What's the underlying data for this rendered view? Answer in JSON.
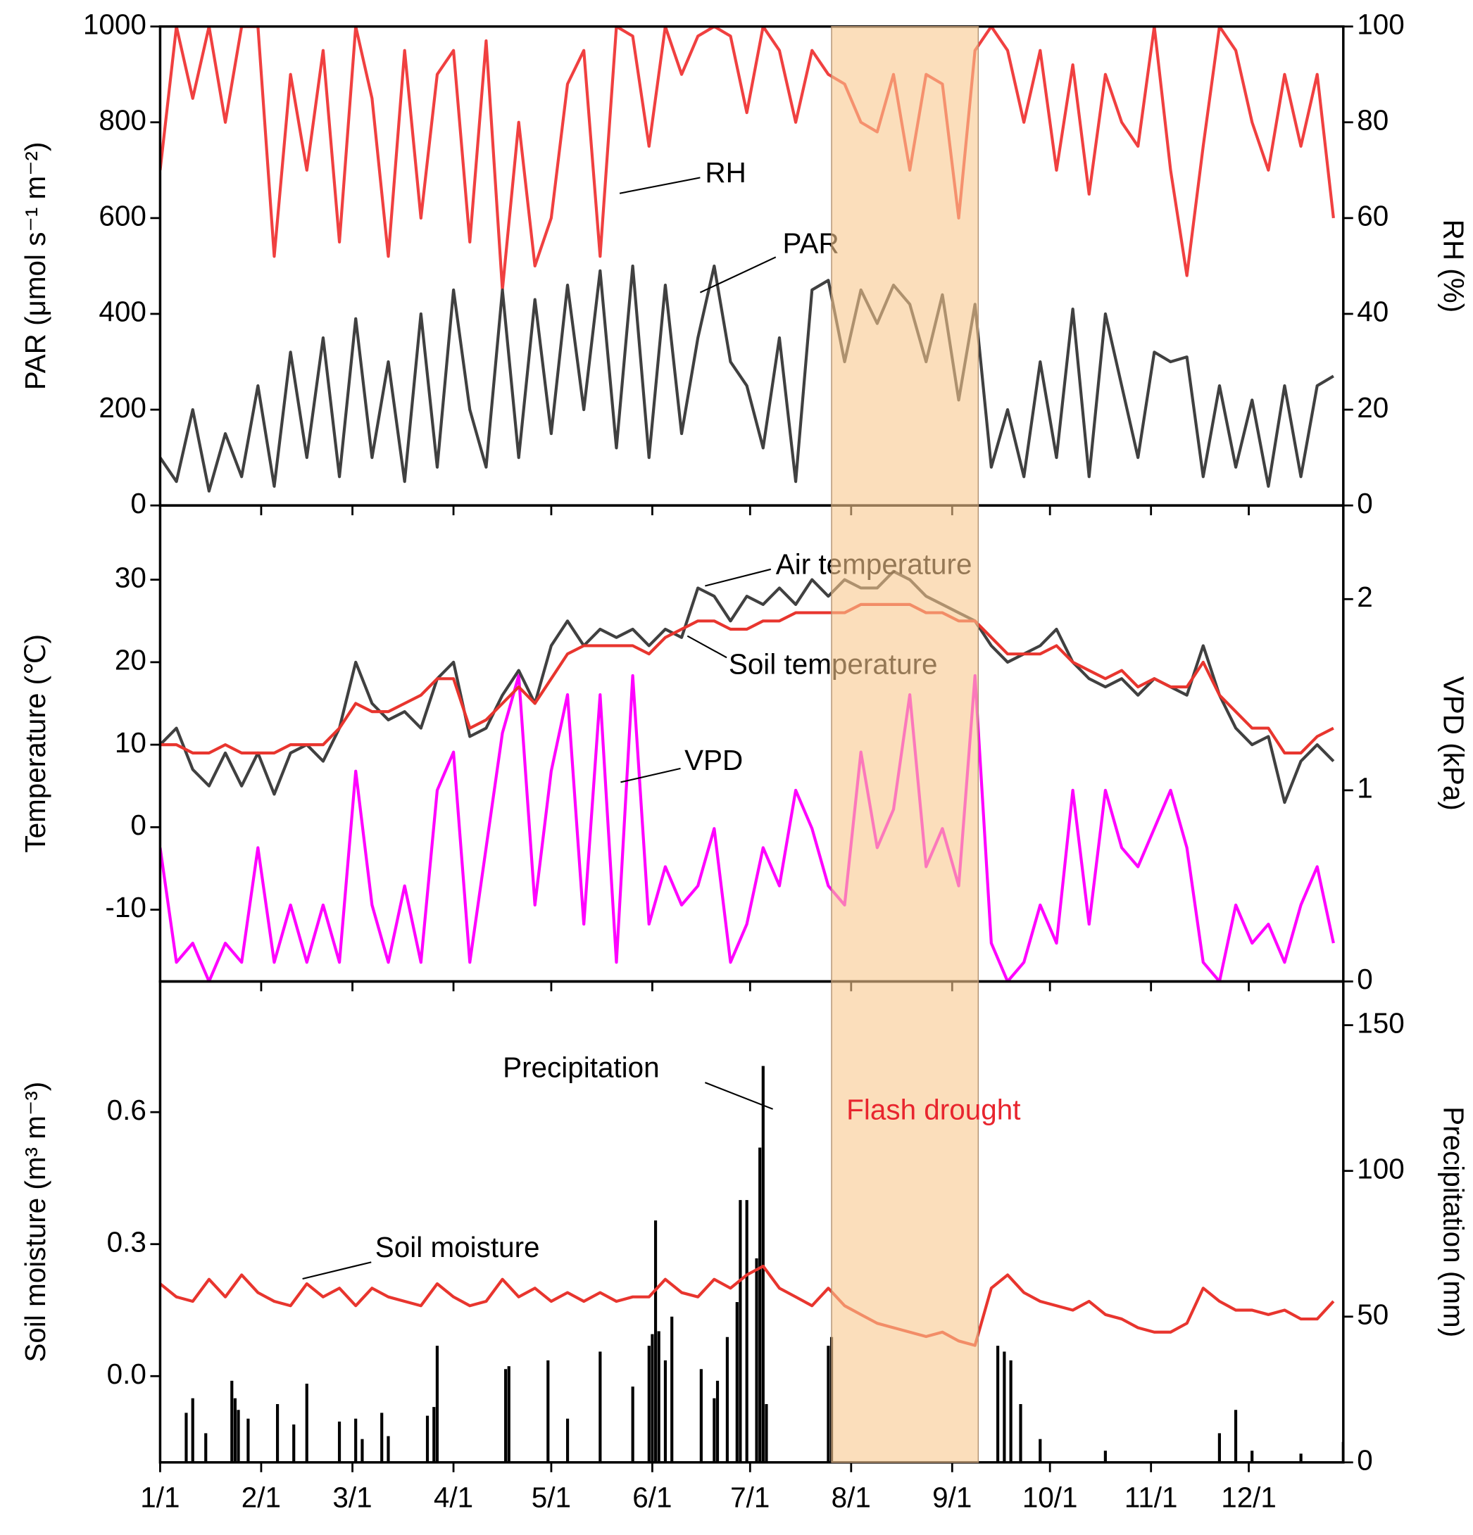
{
  "chart_data": [
    {
      "type": "line",
      "ylabel": "PAR (μmol s⁻¹ m⁻²)",
      "y2label": "RH (%)",
      "ylim": [
        0,
        1000
      ],
      "yticks": [
        0,
        200,
        400,
        600,
        800,
        1000
      ],
      "y2lim": [
        0,
        100
      ],
      "y2ticks": [
        0,
        20,
        40,
        60,
        80,
        100
      ],
      "x": [
        0,
        5,
        10,
        15,
        20,
        25,
        30,
        35,
        40,
        45,
        50,
        55,
        60,
        65,
        70,
        75,
        80,
        85,
        90,
        95,
        100,
        105,
        110,
        115,
        120,
        125,
        130,
        135,
        140,
        145,
        150,
        155,
        160,
        165,
        170,
        175,
        180,
        185,
        190,
        195,
        200,
        205,
        210,
        215,
        220,
        225,
        230,
        235,
        240,
        245,
        250,
        255,
        260,
        265,
        270,
        275,
        280,
        285,
        290,
        295,
        300,
        305,
        310,
        315,
        320,
        325,
        330,
        335,
        340,
        345,
        350,
        355,
        360
      ],
      "series": [
        {
          "name": "RH",
          "color": "#f04040",
          "axis": "y2",
          "values": [
            70,
            100,
            85,
            100,
            80,
            100,
            100,
            52,
            90,
            70,
            95,
            55,
            100,
            85,
            52,
            95,
            60,
            90,
            95,
            55,
            97,
            45,
            80,
            50,
            60,
            88,
            95,
            52,
            100,
            98,
            75,
            100,
            90,
            98,
            100,
            98,
            82,
            100,
            95,
            80,
            95,
            90,
            88,
            80,
            78,
            90,
            70,
            90,
            88,
            60,
            95,
            100,
            95,
            80,
            95,
            70,
            92,
            65,
            90,
            80,
            75,
            100,
            70,
            48,
            75,
            100,
            95,
            80,
            70,
            90,
            75,
            90,
            60
          ]
        },
        {
          "name": "PAR",
          "color": "#404040",
          "values": [
            100,
            50,
            200,
            30,
            150,
            60,
            250,
            40,
            320,
            100,
            350,
            60,
            390,
            100,
            300,
            50,
            400,
            80,
            450,
            200,
            80,
            450,
            100,
            430,
            150,
            460,
            200,
            490,
            120,
            500,
            100,
            460,
            150,
            350,
            500,
            300,
            250,
            120,
            350,
            50,
            450,
            470,
            300,
            450,
            380,
            460,
            420,
            300,
            440,
            220,
            420,
            80,
            200,
            60,
            300,
            100,
            410,
            60,
            400,
            250,
            100,
            320,
            300,
            310,
            60,
            250,
            80,
            220,
            40,
            250,
            60,
            250,
            270
          ]
        }
      ]
    },
    {
      "type": "line",
      "ylabel": "Temperature (℃)",
      "y2label": "VPD (kPa)",
      "ylim": [
        -18.7,
        39
      ],
      "yticks": [
        -10,
        0,
        10,
        20,
        30
      ],
      "y2lim": [
        0,
        2.49
      ],
      "y2ticks": [
        0,
        1,
        2
      ],
      "x": [
        0,
        5,
        10,
        15,
        20,
        25,
        30,
        35,
        40,
        45,
        50,
        55,
        60,
        65,
        70,
        75,
        80,
        85,
        90,
        95,
        100,
        105,
        110,
        115,
        120,
        125,
        130,
        135,
        140,
        145,
        150,
        155,
        160,
        165,
        170,
        175,
        180,
        185,
        190,
        195,
        200,
        205,
        210,
        215,
        220,
        225,
        230,
        235,
        240,
        245,
        250,
        255,
        260,
        265,
        270,
        275,
        280,
        285,
        290,
        295,
        300,
        305,
        310,
        315,
        320,
        325,
        330,
        335,
        340,
        345,
        350,
        355,
        360
      ],
      "series": [
        {
          "name": "VPD",
          "color": "#ff00ff",
          "axis": "y2",
          "values": [
            0.7,
            0.1,
            0.2,
            0.0,
            0.2,
            0.1,
            0.7,
            0.1,
            0.4,
            0.1,
            0.4,
            0.1,
            1.1,
            0.4,
            0.1,
            0.5,
            0.1,
            1.0,
            1.2,
            0.1,
            0.7,
            1.3,
            1.6,
            0.4,
            1.1,
            1.5,
            0.3,
            1.5,
            0.1,
            1.6,
            0.3,
            0.6,
            0.4,
            0.5,
            0.8,
            0.1,
            0.3,
            0.7,
            0.5,
            1.0,
            0.8,
            0.5,
            0.4,
            1.2,
            0.7,
            0.9,
            1.5,
            0.6,
            0.8,
            0.5,
            1.6,
            0.2,
            0.0,
            0.1,
            0.4,
            0.2,
            1.0,
            0.3,
            1.0,
            0.7,
            0.6,
            0.8,
            1.0,
            0.7,
            0.1,
            0.0,
            0.4,
            0.2,
            0.3,
            0.1,
            0.4,
            0.6,
            0.2
          ]
        },
        {
          "name": "Air temperature",
          "color": "#404040",
          "values": [
            10,
            12,
            7,
            5,
            9,
            5,
            9,
            4,
            9,
            10,
            8,
            12,
            20,
            15,
            13,
            14,
            12,
            18,
            20,
            11,
            12,
            16,
            19,
            15,
            22,
            25,
            22,
            24,
            23,
            24,
            22,
            24,
            23,
            29,
            28,
            25,
            28,
            27,
            29,
            27,
            30,
            28,
            30,
            29,
            29,
            31,
            30,
            28,
            27,
            26,
            25,
            22,
            20,
            21,
            22,
            24,
            20,
            18,
            17,
            18,
            16,
            18,
            17,
            16,
            22,
            16,
            12,
            10,
            11,
            3,
            8,
            10,
            8
          ]
        },
        {
          "name": "Soil temperature",
          "color": "#e8352e",
          "values": [
            10,
            10,
            9,
            9,
            10,
            9,
            9,
            9,
            10,
            10,
            10,
            12,
            15,
            14,
            14,
            15,
            16,
            18,
            18,
            12,
            13,
            15,
            17,
            15,
            18,
            21,
            22,
            22,
            22,
            22,
            21,
            23,
            24,
            25,
            25,
            24,
            24,
            25,
            25,
            26,
            26,
            26,
            26,
            27,
            27,
            27,
            27,
            26,
            26,
            25,
            25,
            23,
            21,
            21,
            21,
            22,
            20,
            19,
            18,
            19,
            17,
            18,
            17,
            17,
            20,
            16,
            14,
            12,
            12,
            9,
            9,
            11,
            12
          ]
        }
      ]
    },
    {
      "type": "line",
      "ylabel": "Soil moisture (m³ m⁻³)",
      "y2label": "Precipitation (mm)",
      "ylim": [
        -0.196,
        0.897
      ],
      "yticks": [
        {
          "value": 0,
          "label": "0.0"
        },
        {
          "value": 0.3,
          "label": "0.3"
        },
        {
          "value": 0.6,
          "label": "0.6"
        }
      ],
      "y2lim": [
        0,
        165
      ],
      "y2ticks": [
        0,
        50,
        100,
        150
      ],
      "xlim": [
        0,
        363
      ],
      "xticks": [
        {
          "value": 0,
          "label": "1/1"
        },
        {
          "value": 31,
          "label": "2/1"
        },
        {
          "value": 59,
          "label": "3/1"
        },
        {
          "value": 90,
          "label": "4/1"
        },
        {
          "value": 120,
          "label": "5/1"
        },
        {
          "value": 151,
          "label": "6/1"
        },
        {
          "value": 181,
          "label": "7/1"
        },
        {
          "value": 212,
          "label": "8/1"
        },
        {
          "value": 243,
          "label": "9/1"
        },
        {
          "value": 273,
          "label": "10/1"
        },
        {
          "value": 304,
          "label": "11/1"
        },
        {
          "value": 334,
          "label": "12/1"
        }
      ],
      "highlight": {
        "xlim": [
          206,
          251
        ],
        "label": "Flash drought",
        "color": "#f9c88e"
      },
      "x": [
        0,
        5,
        10,
        15,
        20,
        25,
        30,
        35,
        40,
        45,
        50,
        55,
        60,
        65,
        70,
        75,
        80,
        85,
        90,
        95,
        100,
        105,
        110,
        115,
        120,
        125,
        130,
        135,
        140,
        145,
        150,
        155,
        160,
        165,
        170,
        175,
        180,
        185,
        190,
        195,
        200,
        205,
        210,
        215,
        220,
        225,
        230,
        235,
        240,
        245,
        250,
        255,
        260,
        265,
        270,
        275,
        280,
        285,
        290,
        295,
        300,
        305,
        310,
        315,
        320,
        325,
        330,
        335,
        340,
        345,
        350,
        355,
        360
      ],
      "series": [
        {
          "name": "Precipitation",
          "type": "bar",
          "color": "#000000",
          "axis": "y2",
          "x": [
            8,
            10,
            14,
            22,
            23,
            24,
            27,
            36,
            41,
            45,
            55,
            60,
            62,
            68,
            70,
            82,
            84,
            85,
            106,
            107,
            119,
            125,
            135,
            145,
            150,
            151,
            152,
            153,
            155,
            157,
            166,
            170,
            171,
            174,
            177,
            178,
            180,
            183,
            184,
            185,
            186,
            205,
            206,
            257,
            259,
            261,
            264,
            270,
            290,
            325,
            330,
            335,
            350,
            363
          ],
          "values": [
            17,
            22,
            10,
            28,
            22,
            18,
            15,
            20,
            13,
            27,
            14,
            15,
            8,
            17,
            9,
            16,
            19,
            40,
            32,
            33,
            35,
            15,
            38,
            26,
            40,
            44,
            83,
            45,
            35,
            50,
            32,
            22,
            28,
            43,
            55,
            90,
            90,
            70,
            108,
            136,
            20,
            40,
            43,
            40,
            38,
            35,
            20,
            8,
            4,
            10,
            18,
            4,
            3,
            7
          ]
        },
        {
          "name": "Soil moisture",
          "color": "#e8352e",
          "values": [
            0.21,
            0.18,
            0.17,
            0.22,
            0.18,
            0.23,
            0.19,
            0.17,
            0.16,
            0.21,
            0.18,
            0.2,
            0.16,
            0.2,
            0.18,
            0.17,
            0.16,
            0.21,
            0.18,
            0.16,
            0.17,
            0.22,
            0.18,
            0.2,
            0.17,
            0.19,
            0.17,
            0.19,
            0.17,
            0.18,
            0.18,
            0.22,
            0.19,
            0.18,
            0.22,
            0.2,
            0.23,
            0.25,
            0.2,
            0.18,
            0.16,
            0.2,
            0.16,
            0.14,
            0.12,
            0.11,
            0.1,
            0.09,
            0.1,
            0.08,
            0.07,
            0.2,
            0.23,
            0.19,
            0.17,
            0.16,
            0.15,
            0.17,
            0.14,
            0.13,
            0.11,
            0.1,
            0.1,
            0.12,
            0.2,
            0.17,
            0.15,
            0.15,
            0.14,
            0.15,
            0.13,
            0.13,
            0.17
          ]
        }
      ]
    }
  ]
}
